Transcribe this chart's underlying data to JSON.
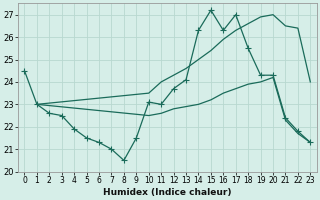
{
  "xlabel": "Humidex (Indice chaleur)",
  "bg_color": "#d6eee8",
  "grid_color": "#b8d8d0",
  "line_color": "#1a6b5a",
  "xlim": [
    -0.5,
    23.5
  ],
  "ylim": [
    20,
    27.5
  ],
  "xticks": [
    0,
    1,
    2,
    3,
    4,
    5,
    6,
    7,
    8,
    9,
    10,
    11,
    12,
    13,
    14,
    15,
    16,
    17,
    18,
    19,
    20,
    21,
    22,
    23
  ],
  "yticks": [
    20,
    21,
    22,
    23,
    24,
    25,
    26,
    27
  ],
  "lines": [
    {
      "x": [
        0,
        1,
        2,
        3,
        4,
        5,
        6,
        7,
        8,
        9,
        10,
        11,
        12,
        13,
        14,
        15,
        16,
        17,
        18,
        19,
        20,
        21,
        22,
        23
      ],
      "y": [
        24.5,
        23.0,
        22.6,
        22.5,
        21.9,
        21.5,
        21.3,
        21.0,
        20.5,
        21.5,
        23.1,
        23.0,
        23.7,
        24.1,
        26.3,
        27.2,
        26.3,
        27.0,
        25.5,
        24.3,
        24.3,
        22.4,
        21.8,
        21.3
      ],
      "marker": true
    },
    {
      "x": [
        1,
        10,
        11,
        12,
        13,
        14,
        15,
        16,
        17,
        18,
        19,
        20,
        21,
        22,
        23
      ],
      "y": [
        23.0,
        23.5,
        24.0,
        24.3,
        24.6,
        25.0,
        25.4,
        25.9,
        26.3,
        26.6,
        26.9,
        27.0,
        26.5,
        26.4,
        24.0
      ],
      "marker": false
    },
    {
      "x": [
        1,
        10,
        11,
        12,
        13,
        14,
        15,
        16,
        17,
        18,
        19,
        20,
        21,
        22,
        23
      ],
      "y": [
        23.0,
        22.5,
        22.6,
        22.8,
        22.9,
        23.0,
        23.2,
        23.5,
        23.7,
        23.9,
        24.0,
        24.2,
        22.3,
        21.7,
        21.3
      ],
      "marker": false
    }
  ]
}
